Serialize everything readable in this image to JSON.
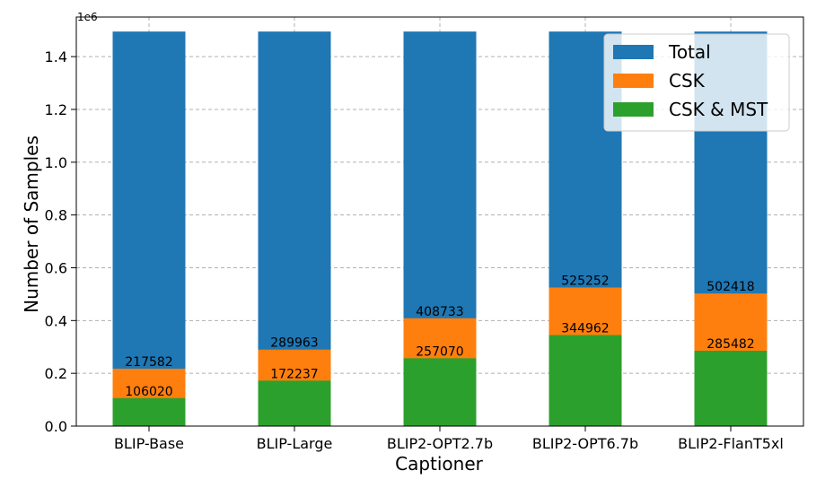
{
  "chart_data": {
    "type": "bar",
    "stacked": "overlay",
    "title": "",
    "xlabel": "Captioner",
    "ylabel": "Number of Samples",
    "y_offset_label": "1e6",
    "y_scale": 1000000,
    "ylim": [
      0,
      1.55
    ],
    "yticks": [
      0.0,
      0.2,
      0.4,
      0.6,
      0.8,
      1.0,
      1.2,
      1.4
    ],
    "ytick_labels": [
      "0.0",
      "0.2",
      "0.4",
      "0.6",
      "0.8",
      "1.0",
      "1.2",
      "1.4"
    ],
    "grid": true,
    "legend_position": "top-right",
    "categories": [
      "BLIP-Base",
      "BLIP-Large",
      "BLIP2-OPT2.7b",
      "BLIP2-OPT6.7b",
      "BLIP2-FlanT5xl"
    ],
    "series": [
      {
        "name": "Total",
        "color": "#1f77b4",
        "values": [
          1495000,
          1495000,
          1495000,
          1495000,
          1495000
        ]
      },
      {
        "name": "CSK",
        "color": "#ff7f0e",
        "values": [
          217582,
          289963,
          408733,
          525252,
          502418
        ],
        "labels": [
          "217582",
          "289963",
          "408733",
          "525252",
          "502418"
        ]
      },
      {
        "name": "CSK & MST",
        "color": "#2ca02c",
        "values": [
          106020,
          172237,
          257070,
          344962,
          285482
        ],
        "labels": [
          "106020",
          "172237",
          "257070",
          "344962",
          "285482"
        ]
      }
    ]
  }
}
